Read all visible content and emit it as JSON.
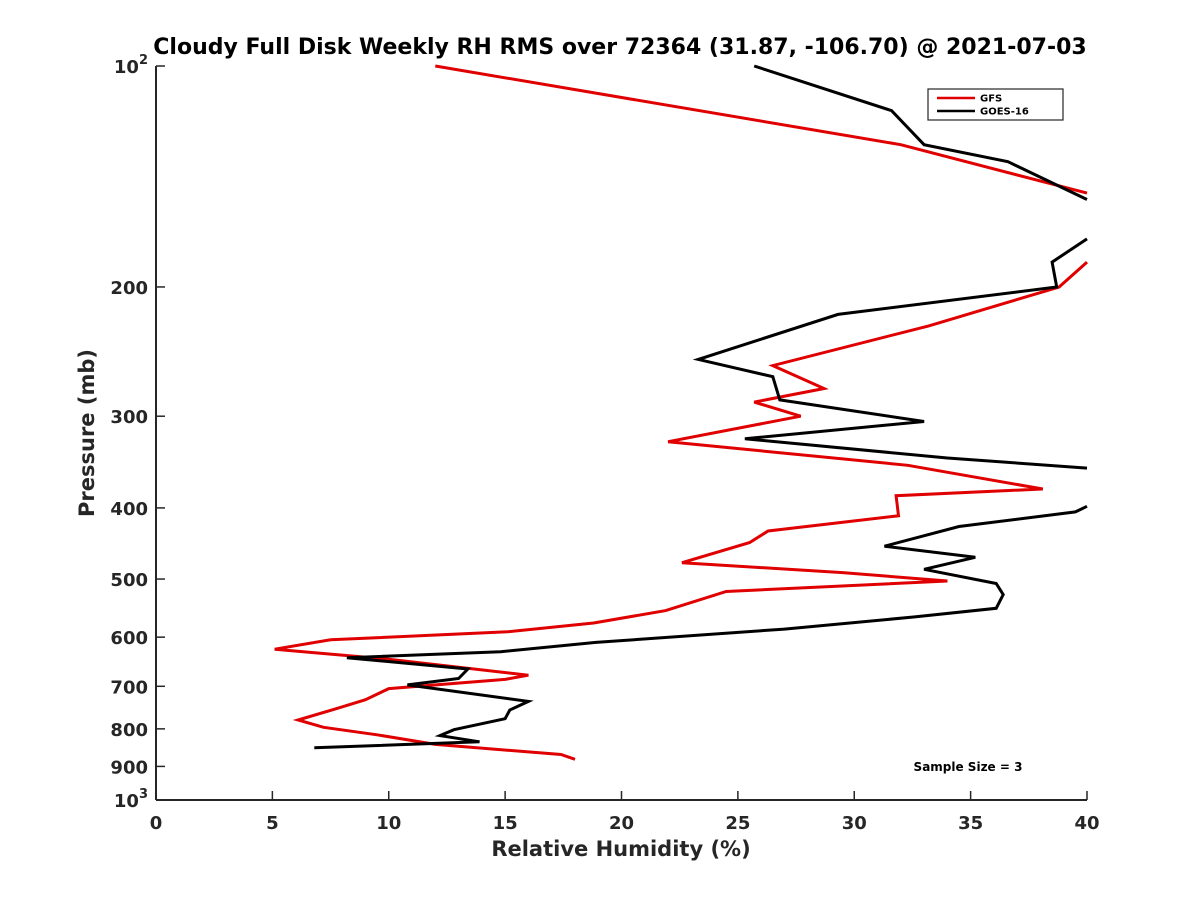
{
  "chart_data": {
    "type": "line",
    "title": "Cloudy Full Disk Weekly RH RMS over 72364 (31.87, -106.70) @ 2021-07-03",
    "xlabel": "Relative Humidity (%)",
    "ylabel": "Pressure (mb)",
    "xlim": [
      0,
      40
    ],
    "ylim": [
      100,
      1000
    ],
    "yscale": "log",
    "y_reversed": true,
    "x_ticks": [
      "0",
      "5",
      "10",
      "15",
      "20",
      "25",
      "30",
      "35",
      "40"
    ],
    "y_ticks": [
      {
        "value": 100,
        "base": "10",
        "exp": "2"
      },
      {
        "value": 200,
        "label": "200"
      },
      {
        "value": 300,
        "label": "300"
      },
      {
        "value": 400,
        "label": "400"
      },
      {
        "value": 500,
        "label": "500"
      },
      {
        "value": 600,
        "label": "600"
      },
      {
        "value": 700,
        "label": "700"
      },
      {
        "value": 800,
        "label": "800"
      },
      {
        "value": 900,
        "label": "900"
      },
      {
        "value": 1000,
        "base": "10",
        "exp": "3"
      }
    ],
    "legend_position": "top-right",
    "annotation": "Sample Size = 3",
    "series": [
      {
        "name": "GFS",
        "color": "#e00000",
        "points": [
          [
            12.0,
            100
          ],
          [
            32.0,
            128
          ],
          [
            40.0,
            149
          ],
          null,
          [
            40.0,
            185
          ],
          [
            38.8,
            200
          ],
          [
            33.2,
            226
          ],
          [
            26.5,
            256
          ],
          [
            28.7,
            275
          ],
          [
            25.7,
            287
          ],
          [
            27.7,
            300
          ],
          [
            22.0,
            325
          ],
          [
            32.3,
            350
          ],
          [
            38.1,
            377
          ],
          [
            31.8,
            385
          ],
          [
            31.9,
            410
          ],
          [
            26.3,
            430
          ],
          [
            25.5,
            446
          ],
          [
            22.6,
            475
          ],
          [
            29.5,
            490
          ],
          [
            34.0,
            503
          ],
          [
            24.5,
            520
          ],
          [
            21.9,
            552
          ],
          [
            18.8,
            574
          ],
          [
            15.1,
            590
          ],
          [
            7.5,
            605
          ],
          [
            5.1,
            623
          ],
          [
            10.0,
            643
          ],
          [
            16.0,
            676
          ],
          [
            15.0,
            685
          ],
          [
            10.0,
            705
          ],
          [
            9.0,
            730
          ],
          [
            7.8,
            750
          ],
          [
            6.1,
            778
          ],
          [
            7.2,
            796
          ],
          [
            9.5,
            815
          ],
          [
            12.0,
            840
          ],
          [
            17.4,
            867
          ],
          [
            18.0,
            880
          ]
        ]
      },
      {
        "name": "GOES-16",
        "color": "#000000",
        "points": [
          [
            25.7,
            100
          ],
          [
            31.6,
            115
          ],
          [
            33.0,
            128
          ],
          [
            36.6,
            135
          ],
          [
            40.0,
            152
          ],
          null,
          [
            40.0,
            172
          ],
          [
            38.5,
            185
          ],
          [
            38.7,
            200
          ],
          [
            29.3,
            218
          ],
          [
            23.3,
            251
          ],
          [
            26.5,
            265
          ],
          [
            26.8,
            285
          ],
          [
            33.0,
            305
          ],
          [
            25.3,
            322
          ],
          [
            34.0,
            342
          ],
          [
            40.0,
            353
          ],
          null,
          [
            40.0,
            398
          ],
          [
            39.5,
            405
          ],
          [
            34.5,
            424
          ],
          [
            31.3,
            451
          ],
          [
            35.2,
            467
          ],
          [
            33.0,
            485
          ],
          [
            36.1,
            507
          ],
          [
            36.4,
            525
          ],
          [
            36.1,
            548
          ],
          [
            32.6,
            563
          ],
          [
            27.0,
            585
          ],
          [
            18.9,
            610
          ],
          [
            14.8,
            628
          ],
          [
            8.2,
            640
          ],
          [
            13.4,
            663
          ],
          [
            13.0,
            683
          ],
          [
            10.8,
            697
          ],
          [
            16.0,
            734
          ],
          [
            15.2,
            754
          ],
          [
            15.0,
            775
          ],
          [
            12.8,
            802
          ],
          [
            12.2,
            817
          ],
          [
            13.9,
            833
          ],
          [
            6.8,
            849
          ]
        ]
      }
    ]
  }
}
